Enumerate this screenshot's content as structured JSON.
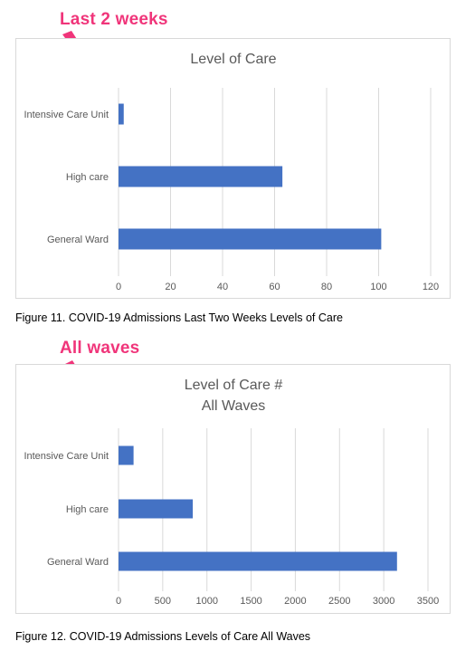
{
  "annotations": {
    "top_label": "Last 2 weeks",
    "bottom_label": "All waves",
    "color": "#f0357a"
  },
  "captions": {
    "figure11": "Figure 11. COVID-19 Admissions Last Two Weeks Levels of Care",
    "figure12": "Figure 12. COVID-19 Admissions Levels of Care All Waves"
  },
  "chart_data": [
    {
      "type": "bar",
      "orientation": "horizontal",
      "title": [
        "Level of Care"
      ],
      "categories": [
        "Intensive Care Unit",
        "High care",
        "General Ward"
      ],
      "values": [
        2,
        63,
        101
      ],
      "xlim": [
        0,
        120
      ],
      "xticks": [
        0,
        20,
        40,
        60,
        80,
        100,
        120
      ],
      "grid": true,
      "bar_color": "#4472c4"
    },
    {
      "type": "bar",
      "orientation": "horizontal",
      "title": [
        "Level of Care #",
        "All Waves"
      ],
      "categories": [
        "Intensive Care Unit",
        "High care",
        "General Ward"
      ],
      "values": [
        170,
        840,
        3150
      ],
      "xlim": [
        0,
        3500
      ],
      "xticks": [
        0,
        500,
        1000,
        1500,
        2000,
        2500,
        3000,
        3500
      ],
      "grid": true,
      "bar_color": "#4472c4"
    }
  ]
}
